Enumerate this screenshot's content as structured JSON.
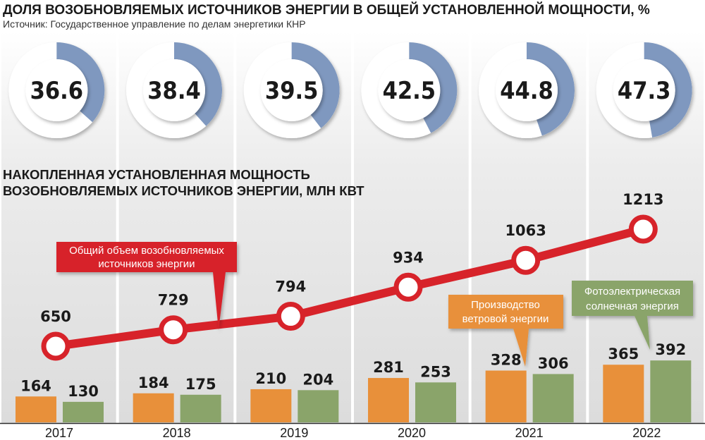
{
  "header": {
    "title": "ДОЛЯ ВОЗОБНОВЛЯЕМЫХ ИСТОЧНИКОВ ЭНЕРГИИ В ОБЩЕЙ УСТАНОВЛЕННОЙ МОЩНОСТИ, %",
    "source": "Источник: Государственное управление по делам энергетики КНР"
  },
  "subtitle": {
    "line1": "НАКОПЛЕННАЯ УСТАНОВЛЕННАЯ МОЩНОСТЬ",
    "line2": "ВОЗОБНОВЛЯЕМЫХ ИСТОЧНИКОВ ЭНЕРГИИ, МЛН КВТ"
  },
  "callouts": {
    "total": [
      "Общий объем возобновляемых",
      "источников энергии"
    ],
    "wind": [
      "Производство",
      "ветровой энергии"
    ],
    "solar": [
      "Фотоэлектрическая",
      "солнечная энергия"
    ]
  },
  "colors": {
    "total_line": "#d7232a",
    "wind": "#e8903a",
    "solar": "#8aa46a",
    "donut_fill": "#7f98bf",
    "donut_track": "#ffffff",
    "column_bg": "#e6e6e6"
  },
  "chart_data": [
    {
      "type": "pie",
      "title": "ДОЛЯ ВОЗОБНОВЛЯЕМЫХ ИСТОЧНИКОВ ЭНЕРГИИ В ОБЩЕЙ УСТАНОВЛЕННОЙ МОЩНОСТИ, %",
      "categories": [
        "2017",
        "2018",
        "2019",
        "2020",
        "2021",
        "2022"
      ],
      "values": [
        36.6,
        38.4,
        39.5,
        42.5,
        44.8,
        47.3
      ],
      "labels": [
        "36.6",
        "38.4",
        "39.5",
        "42.5",
        "44.8",
        "47.3"
      ]
    },
    {
      "type": "line",
      "title": "НАКОПЛЕННАЯ УСТАНОВЛЕННАЯ МОЩНОСТЬ ВОЗОБНОВЛЯЕМЫХ ИСТОЧНИКОВ ЭНЕРГИИ, МЛН КВТ",
      "categories": [
        "2017",
        "2018",
        "2019",
        "2020",
        "2021",
        "2022"
      ],
      "series": [
        {
          "name": "Общий объем возобновляемых источников энергии",
          "values": [
            650,
            729,
            794,
            934,
            1063,
            1213
          ],
          "labels": [
            "650",
            "729",
            "794",
            "934",
            "1063",
            "1213"
          ]
        }
      ]
    },
    {
      "type": "bar",
      "categories": [
        "2017",
        "2018",
        "2019",
        "2020",
        "2021",
        "2022"
      ],
      "series": [
        {
          "name": "Производство ветровой энергии",
          "values": [
            164,
            184,
            210,
            281,
            328,
            365
          ],
          "labels": [
            "164",
            "184",
            "210",
            "281",
            "328",
            "365"
          ]
        },
        {
          "name": "Фотоэлектрическая солнечная энергия",
          "values": [
            130,
            175,
            204,
            253,
            306,
            392
          ],
          "labels": [
            "130",
            "175",
            "204",
            "253",
            "306",
            "392"
          ]
        }
      ]
    }
  ]
}
